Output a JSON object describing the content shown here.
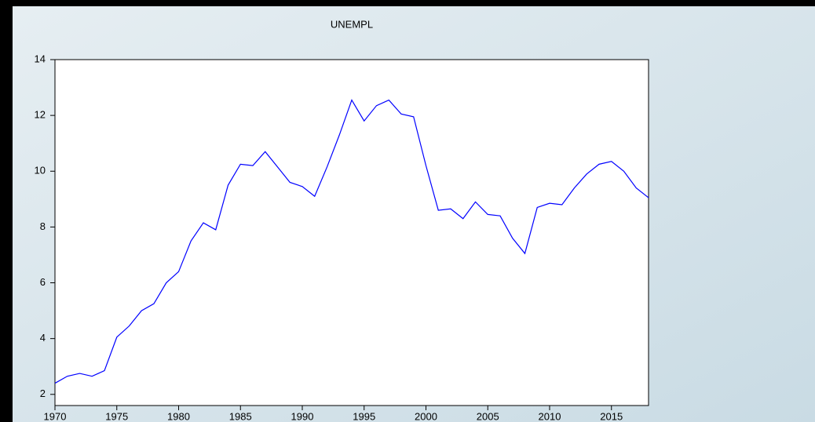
{
  "chart_data": {
    "type": "line",
    "title": "UNEMPL",
    "x": [
      1970,
      1971,
      1972,
      1973,
      1974,
      1975,
      1976,
      1977,
      1978,
      1979,
      1980,
      1981,
      1982,
      1983,
      1984,
      1985,
      1986,
      1987,
      1988,
      1989,
      1990,
      1991,
      1992,
      1993,
      1994,
      1995,
      1996,
      1997,
      1998,
      1999,
      2000,
      2001,
      2002,
      2003,
      2004,
      2005,
      2006,
      2007,
      2008,
      2009,
      2010,
      2011,
      2012,
      2013,
      2014,
      2015,
      2016,
      2017,
      2018
    ],
    "series": [
      {
        "name": "UNEMPL",
        "color": "#0000ff",
        "values": [
          2.4,
          2.65,
          2.75,
          2.65,
          2.85,
          4.05,
          4.45,
          5.0,
          5.25,
          6.0,
          6.4,
          7.5,
          8.15,
          7.9,
          9.5,
          10.25,
          10.2,
          10.7,
          10.15,
          9.6,
          9.45,
          9.1,
          10.15,
          11.3,
          12.55,
          11.8,
          12.35,
          12.55,
          12.05,
          11.95,
          10.2,
          8.6,
          8.65,
          8.3,
          8.9,
          8.45,
          8.4,
          7.6,
          7.05,
          8.7,
          8.85,
          8.8,
          9.4,
          9.9,
          10.25,
          10.35,
          10.0,
          9.4,
          9.05
        ]
      }
    ],
    "xlim": [
      1970,
      2018
    ],
    "xticks": [
      1970,
      1975,
      1980,
      1985,
      1990,
      1995,
      2000,
      2005,
      2010,
      2015
    ],
    "ylim": [
      1.6,
      14
    ],
    "yticks": [
      2,
      4,
      6,
      8,
      10,
      12,
      14
    ]
  }
}
